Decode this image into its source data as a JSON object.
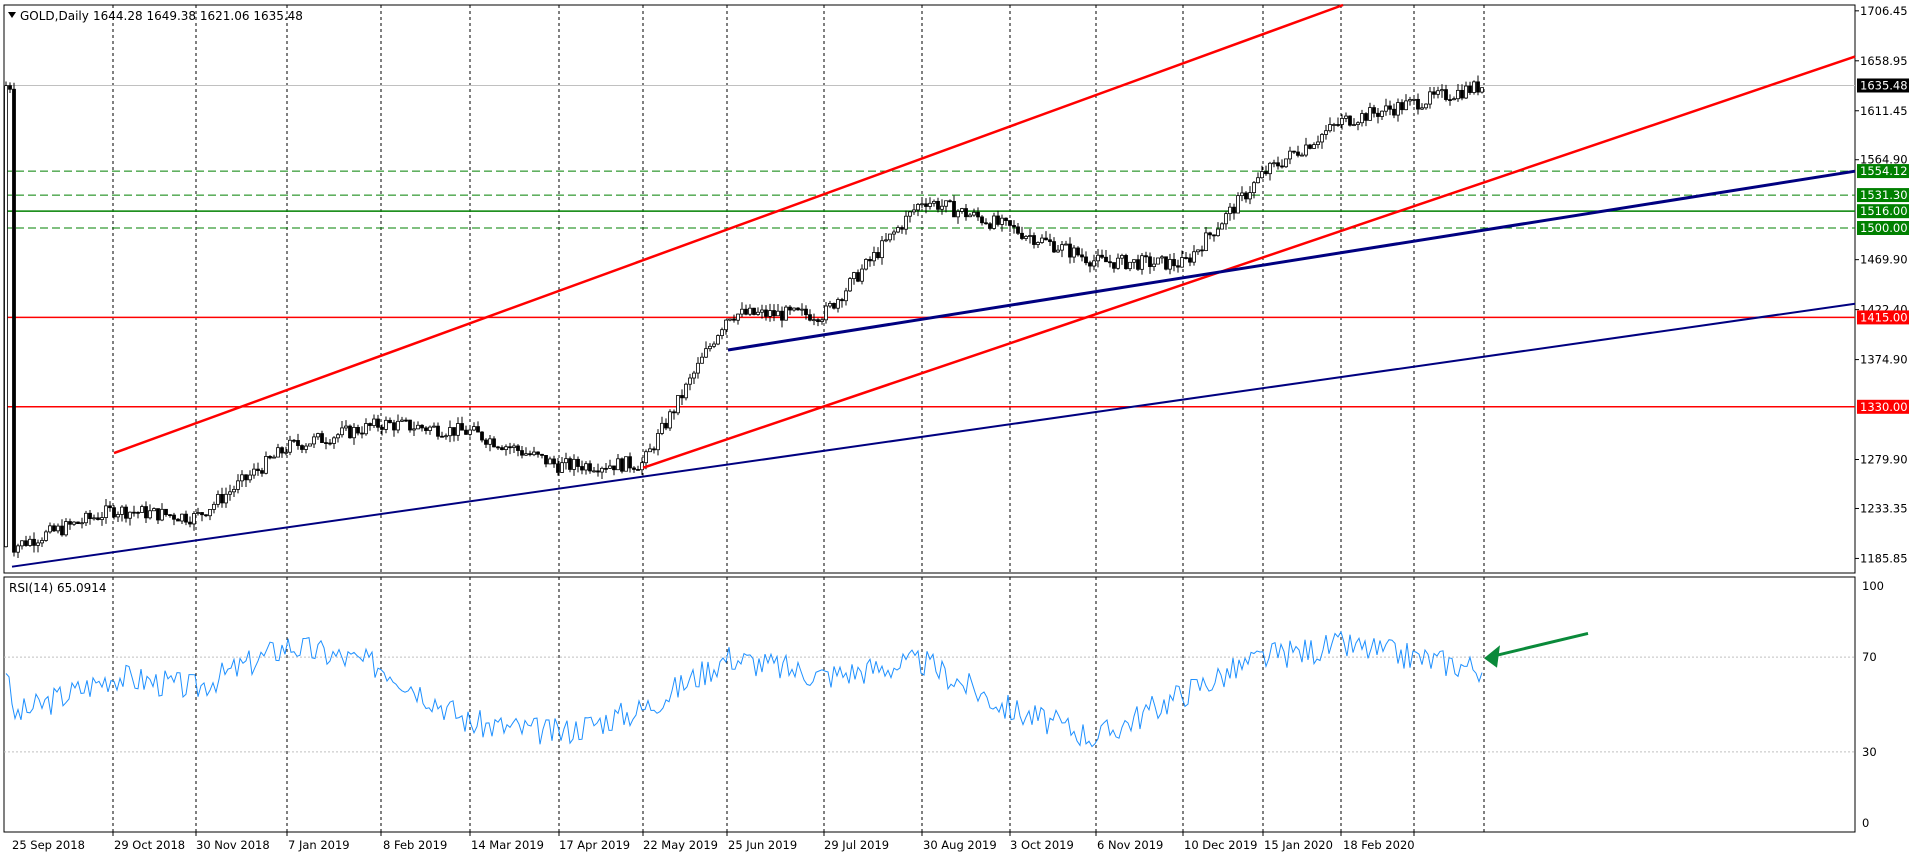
{
  "header": {
    "symbol_label": "GOLD,Daily",
    "ohlc": "1644.28 1649.38 1621.06 1635.48"
  },
  "rsi_panel": {
    "label": "RSI(14) 65.0914"
  },
  "colors": {
    "bullish_candle": "#000000",
    "bearish_candle": "#000000",
    "channel_line": "#ff0000",
    "trend_line": "#000080",
    "support_green": "#008000",
    "resistance_red": "#ff0000",
    "rsi_line": "#1e90ff",
    "arrow": "#0a8a3a",
    "grid": "#000000"
  },
  "chart_data": [
    {
      "type": "candlestick",
      "title": "",
      "symbol": "GOLD",
      "timeframe": "Daily",
      "x_axis_labels": [
        "25 Sep 2018",
        "29 Oct 2018",
        "30 Nov 2018",
        "7 Jan 2019",
        "8 Feb 2019",
        "14 Mar 2019",
        "17 Apr 2019",
        "22 May 2019",
        "25 Jun 2019",
        "29 Jul 2019",
        "30 Aug 2019",
        "3 Oct 2019",
        "6 Nov 2019",
        "10 Dec 2019",
        "15 Jan 2020",
        "18 Feb 2020"
      ],
      "y_axis_labels": [
        "1706.45",
        "1658.95",
        "1611.45",
        "1564.90",
        "1469.90",
        "1422.40",
        "1374.90",
        "1279.90",
        "1233.35",
        "1185.85"
      ],
      "ylim": [
        1172,
        1712
      ],
      "grid": "vertical dashed at each date label",
      "last_price": 1635.48,
      "horizontal_levels": [
        {
          "value": 1554.12,
          "label": "1554.12",
          "style": "dashed",
          "color": "green"
        },
        {
          "value": 1531.3,
          "label": "1531.30",
          "style": "dashed",
          "color": "green"
        },
        {
          "value": 1516.0,
          "label": "1516.00",
          "style": "solid",
          "color": "green"
        },
        {
          "value": 1500.0,
          "label": "1500.00",
          "style": "dashed",
          "color": "green"
        },
        {
          "value": 1415.0,
          "label": "1415.00",
          "style": "solid",
          "color": "red"
        },
        {
          "value": 1330.0,
          "label": "1330.00",
          "style": "solid",
          "color": "red"
        }
      ],
      "trend_lines": [
        {
          "name": "upper channel",
          "color": "red",
          "from": [
            "29 Oct 2018",
            1286
          ],
          "to": [
            "18 Feb 2020",
            1712
          ]
        },
        {
          "name": "lower channel",
          "color": "red",
          "from": [
            "22 May 2019",
            1272
          ],
          "to": [
            "end",
            1663
          ]
        },
        {
          "name": "long-term support",
          "color": "navy",
          "from": [
            "25 Sep 2018",
            1178
          ],
          "to": [
            "end",
            1428
          ]
        },
        {
          "name": "mid-term support",
          "color": "navy",
          "from": [
            "25 Jun 2019",
            1384
          ],
          "to": [
            "end",
            1554
          ]
        }
      ],
      "close_path": [
        [
          "25 Sep 2018",
          1197
        ],
        [
          "29 Oct 2018",
          1232
        ],
        [
          "30 Nov 2018",
          1225
        ],
        [
          "7 Jan 2019",
          1292
        ],
        [
          "8 Feb 2019",
          1314
        ],
        [
          "14 Mar 2019",
          1306
        ],
        [
          "17 Apr 2019",
          1274
        ],
        [
          "22 May 2019",
          1276
        ],
        [
          "25 Jun 2019",
          1418
        ],
        [
          "29 Jul 2019",
          1418
        ],
        [
          "30 Aug 2019",
          1527
        ],
        [
          "3 Oct 2019",
          1500
        ],
        [
          "6 Nov 2019",
          1468
        ],
        [
          "10 Dec 2019",
          1466
        ],
        [
          "15 Jan 2020",
          1552
        ],
        [
          "18 Feb 2020",
          1602
        ],
        [
          "latest",
          1635.48
        ]
      ]
    },
    {
      "type": "line",
      "title": "",
      "indicator": "RSI(14)",
      "ylim": [
        0,
        100
      ],
      "y_axis_labels": [
        "100",
        "70",
        "30",
        "0"
      ],
      "reference_levels": [
        70,
        30
      ],
      "last_value": 65.0914,
      "points": [
        [
          "25 Sep 2018",
          45
        ],
        [
          "29 Oct 2018",
          62
        ],
        [
          "30 Nov 2018",
          57
        ],
        [
          "7 Jan 2019",
          75
        ],
        [
          "8 Feb 2019",
          66
        ],
        [
          "14 Mar 2019",
          42
        ],
        [
          "17 Apr 2019",
          38
        ],
        [
          "22 May 2019",
          48
        ],
        [
          "25 Jun 2019",
          70
        ],
        [
          "29 Jul 2019",
          62
        ],
        [
          "30 Aug 2019",
          68
        ],
        [
          "3 Oct 2019",
          48
        ],
        [
          "6 Nov 2019",
          36
        ],
        [
          "10 Dec 2019",
          55
        ],
        [
          "15 Jan 2020",
          70
        ],
        [
          "18 Feb 2020",
          75
        ],
        [
          "latest",
          65.09
        ]
      ]
    }
  ]
}
